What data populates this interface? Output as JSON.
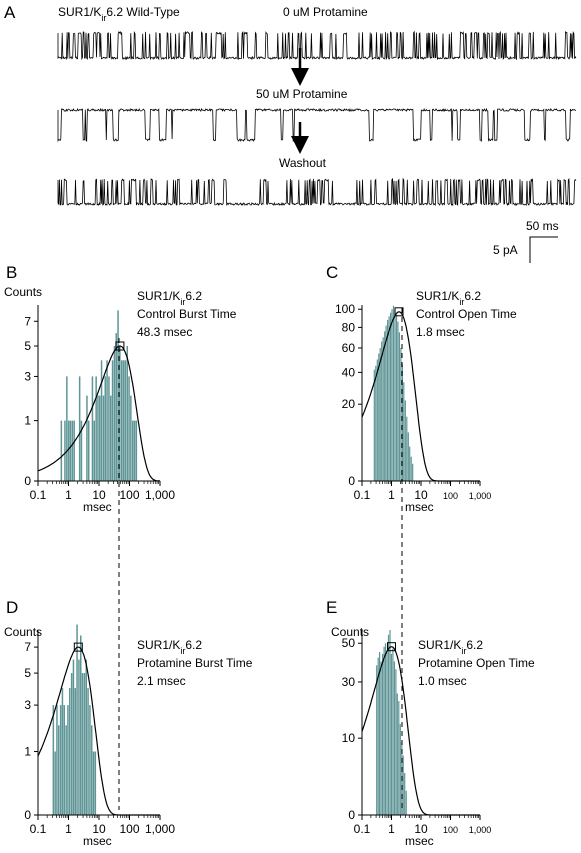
{
  "colors": {
    "bar": "#5f9596",
    "trace": "#000000",
    "fit": "#000000"
  },
  "panel_a": {
    "letter": "A",
    "title": "SUR1/K",
    "title_sub": "ir",
    "title_rest": "6.2 Wild-Type",
    "trace1_label": "0 uM  Protamine",
    "trace2_label": "50 uM  Protamine",
    "trace3_label": "Washout",
    "scale_time": "50 ms",
    "scale_current": "5 pA"
  },
  "chart_data": [
    {
      "panel": "B",
      "type": "bar",
      "title_main": "SUR1/K",
      "title_sub": "ir",
      "title_rest": "6.2",
      "subtitle": "Control Burst Time",
      "value_text": "48.3 msec",
      "ylabel": "Counts",
      "xlabel": "msec",
      "xscale": "log",
      "yscale": "sqrt",
      "xlim": [
        0.1,
        1000
      ],
      "ylim": [
        0,
        8.5
      ],
      "xticks": [
        "0.1",
        "1",
        "10",
        "100",
        "1,000"
      ],
      "yticks": [
        0,
        1,
        3,
        5,
        7
      ],
      "peak": 48.3,
      "fit_peak_count": 5,
      "bins": {
        "start": 0.55,
        "width_log": 0.06,
        "counts": [
          1,
          0,
          1,
          3,
          1,
          1,
          1,
          1,
          0,
          0,
          3,
          1,
          0,
          0,
          2,
          1,
          0,
          3,
          1,
          3,
          2,
          2,
          4,
          2,
          3,
          4,
          3,
          2,
          4,
          5,
          6,
          8,
          5,
          4,
          4,
          4,
          5,
          3,
          2,
          1,
          1,
          1,
          0,
          0
        ]
      }
    },
    {
      "panel": "C",
      "type": "bar",
      "title_main": "SUR1/K",
      "title_sub": "ir",
      "title_rest": "6.2",
      "subtitle": "Control Open Time",
      "value_text": "1.8 msec",
      "ylabel": "",
      "xlabel": "msec",
      "xscale": "log",
      "yscale": "sqrt",
      "xlim": [
        0.1,
        1000
      ],
      "ylim": [
        0,
        105
      ],
      "xticks": [
        "0.1",
        "1",
        "10",
        "100",
        "1,000"
      ],
      "yticks": [
        0,
        20,
        40,
        60,
        80,
        100
      ],
      "peak": 1.8,
      "fit_peak_count": 97,
      "bins": {
        "start": 0.25,
        "width_log": 0.05,
        "counts": [
          42,
          45,
          50,
          55,
          60,
          66,
          70,
          76,
          82,
          88,
          92,
          96,
          100,
          104,
          100,
          94,
          86,
          75,
          60,
          46,
          33,
          22,
          14,
          8,
          4,
          2,
          1
        ]
      }
    },
    {
      "panel": "D",
      "type": "bar",
      "title_main": "SUR1/K",
      "title_sub": "ir",
      "title_rest": "6.2",
      "subtitle": "Protamine Burst Time",
      "value_text": "2.1 msec",
      "ylabel": "Counts",
      "xlabel": "msec",
      "xscale": "log",
      "yscale": "sqrt",
      "xlim": [
        0.1,
        1000
      ],
      "ylim": [
        0,
        8.5
      ],
      "xticks": [
        "0.1",
        "1",
        "10",
        "100",
        "1,000"
      ],
      "yticks": [
        0,
        1,
        3,
        5,
        7
      ],
      "peak": 2.1,
      "fit_peak_count": 7,
      "bins": {
        "start": 0.3,
        "width_log": 0.06,
        "counts": [
          3,
          1,
          3,
          2,
          3,
          4,
          3,
          2,
          3,
          4,
          5,
          6,
          4,
          9,
          6,
          8,
          5,
          5,
          6,
          4,
          3,
          2,
          1,
          1
        ]
      }
    },
    {
      "panel": "E",
      "type": "bar",
      "title_main": "SUR1/K",
      "title_sub": "ir",
      "title_rest": "6.2",
      "subtitle": "Protamine Open Time",
      "value_text": "1.0 msec",
      "ylabel": "Counts",
      "xlabel": "msec",
      "xscale": "log",
      "yscale": "sqrt",
      "xlim": [
        0.1,
        1000
      ],
      "ylim": [
        0,
        58
      ],
      "xticks": [
        "0.1",
        "1",
        "10",
        "100",
        "1,000"
      ],
      "yticks": [
        0,
        10,
        30,
        50
      ],
      "peak": 1.0,
      "fit_peak_count": 48,
      "bins": {
        "start": 0.3,
        "width_log": 0.05,
        "counts": [
          38,
          42,
          45,
          40,
          44,
          48,
          50,
          46,
          55,
          58,
          44,
          47,
          40,
          36,
          25,
          22,
          14,
          9,
          6,
          3,
          1
        ]
      }
    }
  ]
}
